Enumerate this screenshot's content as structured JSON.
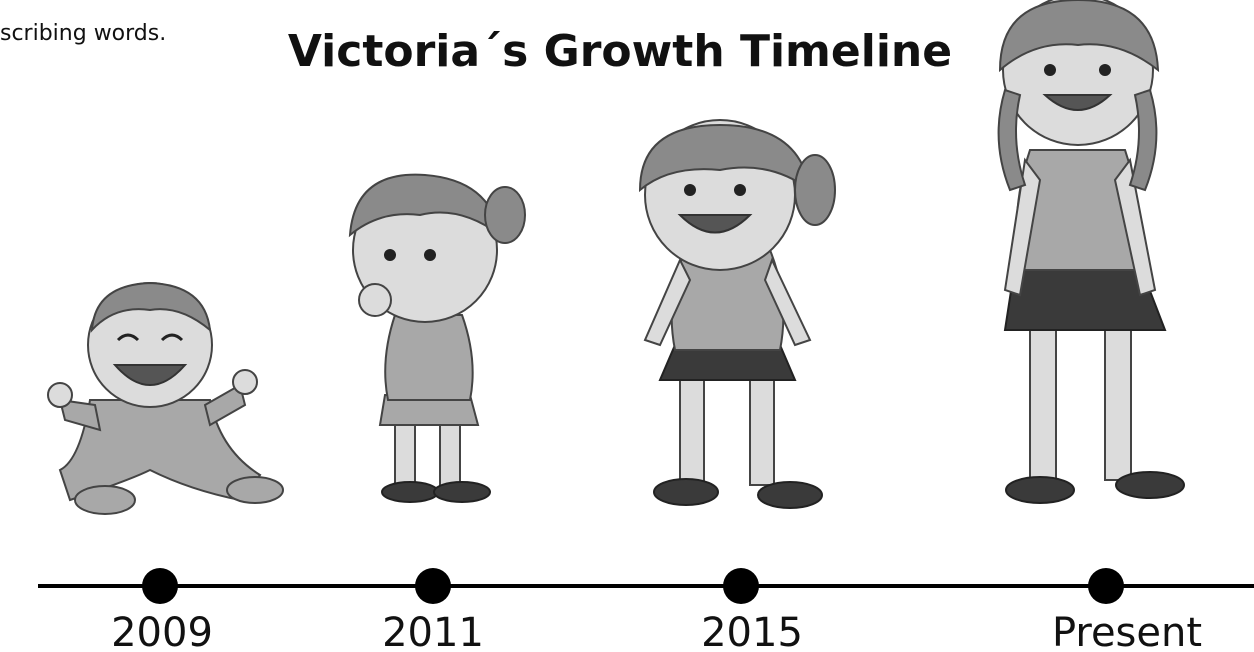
{
  "header": {
    "fragment": "scribing words.",
    "title": "Victoria´s Growth Timeline"
  },
  "timeline": {
    "points": [
      {
        "label": "2009"
      },
      {
        "label": "2011"
      },
      {
        "label": "2015"
      },
      {
        "label": "Present"
      }
    ]
  }
}
